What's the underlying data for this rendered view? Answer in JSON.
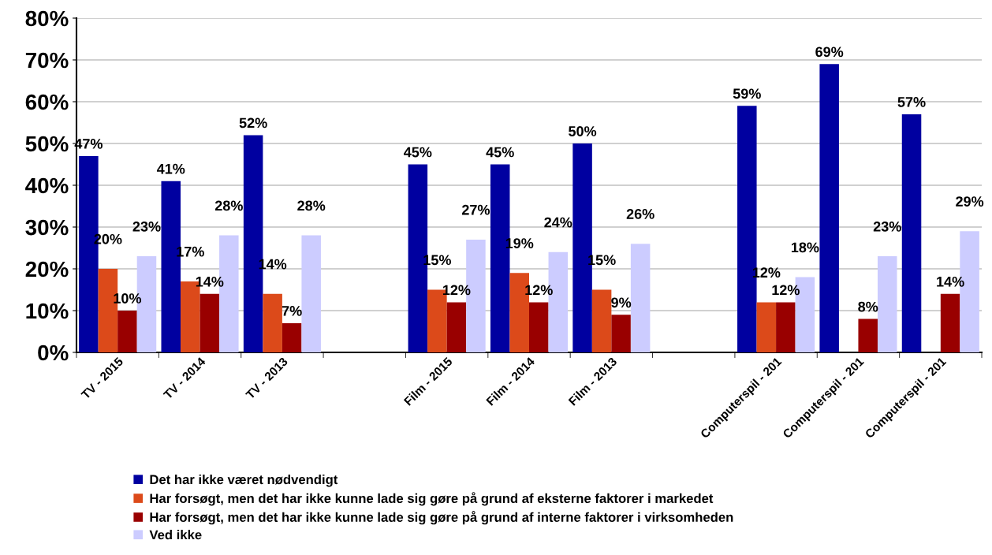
{
  "chart_data": {
    "type": "bar",
    "categories": [
      "TV - 2015",
      "TV - 2014",
      "TV - 2013",
      null,
      "Film - 2015",
      "Film - 2014",
      "Film - 2013",
      null,
      "Computerspil - 201",
      "Computerspil - 201",
      "Computerspil - 201"
    ],
    "series": [
      {
        "name": "Det har ikke været nødvendigt",
        "color": "#0000a0",
        "values": [
          47,
          41,
          52,
          null,
          45,
          45,
          50,
          null,
          59,
          69,
          57
        ]
      },
      {
        "name": "Har forsøgt, men det har ikke kunne lade sig gøre på grund af eksterne faktorer i markedet",
        "color": "#dc4a1a",
        "values": [
          20,
          17,
          14,
          null,
          15,
          19,
          15,
          null,
          12,
          null,
          null
        ]
      },
      {
        "name": "Har forsøgt, men det har ikke kunne lade sig gøre på grund af interne faktorer i virksomheden",
        "color": "#990000",
        "values": [
          10,
          14,
          7,
          null,
          12,
          12,
          9,
          null,
          12,
          8,
          14
        ]
      },
      {
        "name": "Ved ikke",
        "color": "#ccccff",
        "values": [
          23,
          28,
          28,
          null,
          27,
          24,
          26,
          null,
          18,
          23,
          29
        ]
      }
    ],
    "ylim": [
      0,
      80
    ],
    "yticks": [
      {
        "value": 0,
        "label": "0%"
      },
      {
        "value": 10,
        "label": "10%"
      },
      {
        "value": 20,
        "label": "20%"
      },
      {
        "value": 30,
        "label": "30%"
      },
      {
        "value": 40,
        "label": "40%"
      },
      {
        "value": 50,
        "label": "50%"
      },
      {
        "value": 60,
        "label": "60%"
      },
      {
        "value": 70,
        "label": "70%"
      },
      {
        "value": 80,
        "label": "80%"
      }
    ],
    "grid": "y",
    "legend": "bottom",
    "value_labels": [
      [
        "47%",
        "41%",
        "52%",
        null,
        "45%",
        "45%",
        "50%",
        null,
        "59%",
        "69%",
        "57%"
      ],
      [
        "20%",
        "17%",
        "14%",
        null,
        "15%",
        "19%",
        "15%",
        null,
        "12%",
        null,
        null
      ],
      [
        "10%",
        "14%",
        "7%",
        null,
        "12%",
        "12%",
        "9%",
        null,
        "12%",
        "8%",
        "14%"
      ],
      [
        "23%",
        "28%",
        "28%",
        null,
        "27%",
        "24%",
        "26%",
        null,
        "18%",
        "23%",
        "29%"
      ]
    ]
  }
}
